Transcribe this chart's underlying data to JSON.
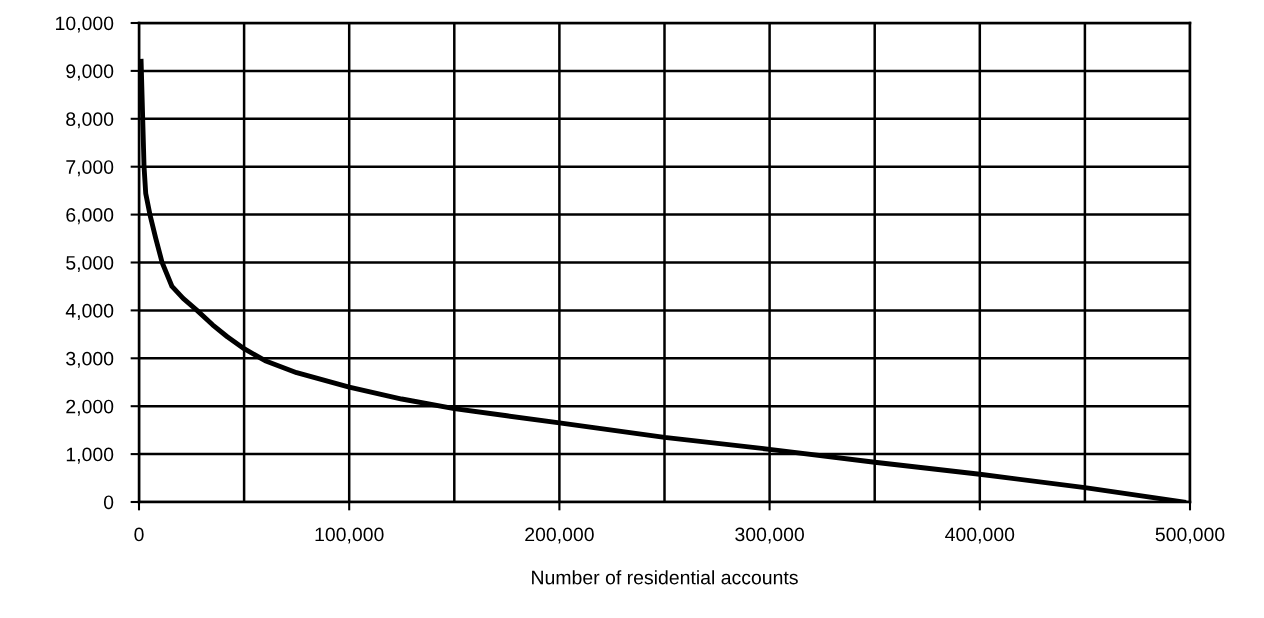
{
  "chart_data": {
    "type": "line",
    "xlabel": "Number of residential accounts",
    "x": [
      1000,
      2400,
      3200,
      5200,
      8000,
      11000,
      15700,
      21000,
      27600,
      35000,
      42000,
      50000,
      60000,
      75000,
      100000,
      125000,
      150000,
      175000,
      200000,
      250000,
      300000,
      350000,
      400000,
      450000,
      497000
    ],
    "series": [
      {
        "color": "#000000",
        "values": [
          9200,
          7000,
          6440,
          6000,
          5500,
          5000,
          4500,
          4250,
          4000,
          3700,
          3450,
          3200,
          2950,
          2700,
          2400,
          2150,
          1950,
          1800,
          1650,
          1350,
          1100,
          830,
          580,
          300,
          0
        ]
      }
    ],
    "xlim": [
      0,
      500000
    ],
    "ylim": [
      0,
      10000
    ],
    "xticks": [
      {
        "value": 0,
        "label": "0"
      },
      {
        "value": 100000,
        "label": "100,000"
      },
      {
        "value": 200000,
        "label": "200,000"
      },
      {
        "value": 300000,
        "label": "300,000"
      },
      {
        "value": 400000,
        "label": "400,000"
      },
      {
        "value": 500000,
        "label": "500,000"
      }
    ],
    "yticks": [
      {
        "value": 0,
        "label": "0"
      },
      {
        "value": 1000,
        "label": "1,000"
      },
      {
        "value": 2000,
        "label": "2,000"
      },
      {
        "value": 3000,
        "label": "3,000"
      },
      {
        "value": 4000,
        "label": "4,000"
      },
      {
        "value": 5000,
        "label": "5,000"
      },
      {
        "value": 6000,
        "label": "6,000"
      },
      {
        "value": 7000,
        "label": "7,000"
      },
      {
        "value": 8000,
        "label": "8,000"
      },
      {
        "value": 9000,
        "label": "9,000"
      },
      {
        "value": 10000,
        "label": "10,000"
      }
    ],
    "grid": true,
    "line_style": "solid",
    "marker": "none"
  }
}
